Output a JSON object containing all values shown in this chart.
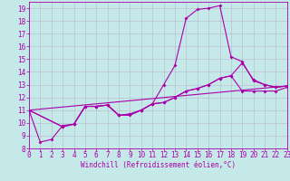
{
  "xlabel": "Windchill (Refroidissement éolien,°C)",
  "bg_color": "#c5e8e8",
  "grid_color": "#b8b8cc",
  "line_color": "#aa00aa",
  "xlim": [
    0,
    23
  ],
  "ylim": [
    8,
    19.5
  ],
  "xticks": [
    0,
    1,
    2,
    3,
    4,
    5,
    6,
    7,
    8,
    9,
    10,
    11,
    12,
    13,
    14,
    15,
    16,
    17,
    18,
    19,
    20,
    21,
    22,
    23
  ],
  "yticks": [
    8,
    9,
    10,
    11,
    12,
    13,
    14,
    15,
    16,
    17,
    18,
    19
  ],
  "curve1_x": [
    0,
    1,
    2,
    3,
    4,
    5,
    6,
    7,
    8,
    9,
    10,
    11,
    12,
    13,
    14,
    15,
    16,
    17,
    18,
    19,
    20,
    21,
    22,
    23
  ],
  "curve1_y": [
    11.0,
    8.5,
    8.7,
    9.8,
    9.9,
    11.3,
    11.3,
    11.4,
    10.6,
    10.6,
    11.0,
    11.5,
    13.0,
    14.5,
    18.2,
    18.9,
    19.0,
    19.2,
    15.2,
    14.8,
    13.3,
    13.0,
    12.8,
    12.9
  ],
  "curve2_x": [
    0,
    3,
    4,
    5,
    6,
    7,
    8,
    9,
    10,
    11,
    12,
    13,
    14,
    15,
    16,
    17,
    18,
    19,
    20,
    21,
    22,
    23
  ],
  "curve2_y": [
    11.0,
    9.7,
    9.9,
    11.3,
    11.3,
    11.4,
    10.6,
    10.7,
    11.0,
    11.5,
    11.6,
    12.0,
    12.5,
    12.7,
    13.0,
    13.5,
    13.7,
    14.7,
    13.4,
    13.0,
    12.8,
    12.9
  ],
  "curve3_x": [
    0,
    23
  ],
  "curve3_y": [
    11.0,
    12.9
  ],
  "curve4_x": [
    0,
    3,
    4,
    5,
    6,
    7,
    8,
    9,
    10,
    11,
    12,
    13,
    14,
    15,
    16,
    17,
    18,
    19,
    20,
    21,
    22,
    23
  ],
  "curve4_y": [
    11.0,
    9.7,
    9.9,
    11.3,
    11.3,
    11.4,
    10.6,
    10.7,
    11.0,
    11.5,
    11.6,
    12.0,
    12.5,
    12.7,
    13.0,
    13.5,
    13.7,
    12.5,
    12.5,
    12.5,
    12.5,
    12.8
  ],
  "tick_fontsize": 5.5,
  "xlabel_fontsize": 5.5
}
